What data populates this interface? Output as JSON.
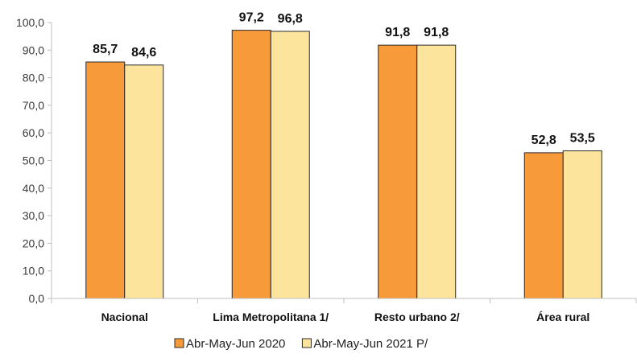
{
  "chart_data": {
    "type": "bar",
    "categories": [
      "Nacional",
      "Lima Metropolitana 1/",
      "Resto urbano 2/",
      "Área rural"
    ],
    "series": [
      {
        "name": "Abr-May-Jun 2020",
        "values": [
          85.7,
          97.2,
          91.8,
          52.8
        ],
        "labels": [
          "85,7",
          "97,2",
          "91,8",
          "52,8"
        ],
        "color": "#F79A3A"
      },
      {
        "name": "Abr-May-Jun 2021 P/",
        "values": [
          84.6,
          96.8,
          91.8,
          53.5
        ],
        "labels": [
          "84,6",
          "96,8",
          "91,8",
          "53,5"
        ],
        "color": "#FDE49C"
      }
    ],
    "yticks": [
      "0,0",
      "10,0",
      "20,0",
      "30,0",
      "40,0",
      "50,0",
      "60,0",
      "70,0",
      "80,0",
      "90,0",
      "100,0"
    ],
    "ylim": [
      0,
      100
    ],
    "grid": false,
    "legend_position": "bottom",
    "title": "",
    "xlabel": "",
    "ylabel": ""
  }
}
